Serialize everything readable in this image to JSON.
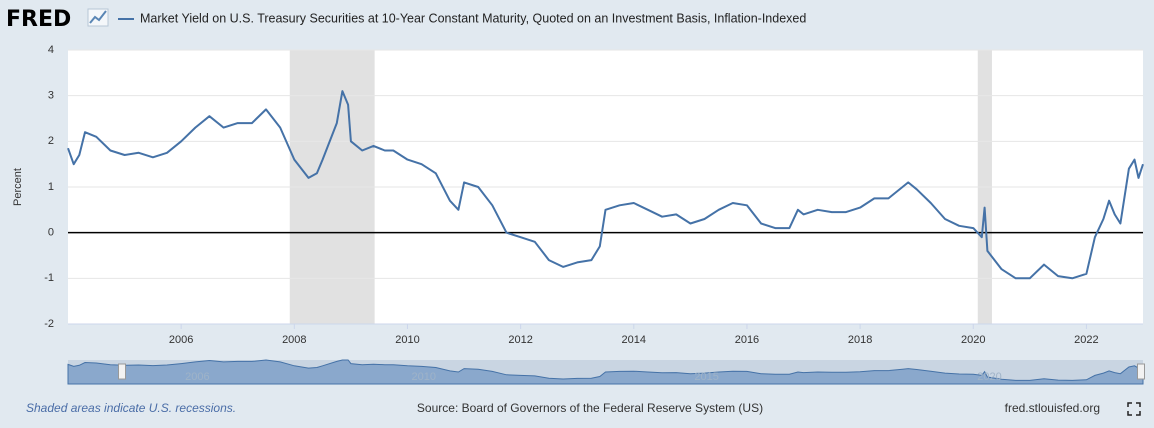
{
  "logo": "FRED",
  "chart_data": {
    "type": "line",
    "y_label": "Percent",
    "xlim": [
      2004,
      2023
    ],
    "xticks": [
      2006,
      2008,
      2010,
      2012,
      2014,
      2016,
      2018,
      2020,
      2022
    ],
    "ylim": [
      -2,
      4
    ],
    "yticks": [
      -2,
      -1,
      0,
      1,
      2,
      3,
      4
    ],
    "grid": true,
    "recessions": [
      [
        2007.92,
        2009.42
      ],
      [
        2020.08,
        2020.33
      ]
    ],
    "navigator_xticks": [
      2006,
      2010,
      2015,
      2020
    ],
    "x": [
      2004.0,
      2004.1,
      2004.2,
      2004.3,
      2004.5,
      2004.75,
      2005.0,
      2005.25,
      2005.5,
      2005.75,
      2006.0,
      2006.25,
      2006.5,
      2006.75,
      2007.0,
      2007.25,
      2007.5,
      2007.75,
      2008.0,
      2008.25,
      2008.4,
      2008.5,
      2008.75,
      2008.85,
      2008.95,
      2009.0,
      2009.2,
      2009.4,
      2009.6,
      2009.75,
      2010.0,
      2010.25,
      2010.5,
      2010.75,
      2010.9,
      2011.0,
      2011.25,
      2011.5,
      2011.75,
      2012.0,
      2012.25,
      2012.5,
      2012.75,
      2013.0,
      2013.25,
      2013.4,
      2013.5,
      2013.75,
      2014.0,
      2014.25,
      2014.5,
      2014.75,
      2015.0,
      2015.25,
      2015.5,
      2015.75,
      2016.0,
      2016.25,
      2016.5,
      2016.75,
      2016.9,
      2017.0,
      2017.25,
      2017.5,
      2017.75,
      2018.0,
      2018.25,
      2018.5,
      2018.75,
      2018.85,
      2019.0,
      2019.25,
      2019.5,
      2019.75,
      2020.0,
      2020.15,
      2020.2,
      2020.25,
      2020.5,
      2020.75,
      2021.0,
      2021.25,
      2021.5,
      2021.75,
      2022.0,
      2022.15,
      2022.3,
      2022.4,
      2022.5,
      2022.6,
      2022.75,
      2022.85,
      2022.92,
      2023.0
    ],
    "series": [
      {
        "name": "Market Yield on U.S. Treasury Securities at 10-Year Constant Maturity, Quoted on an Investment Basis, Inflation-Indexed",
        "color": "#4572a7",
        "values": [
          1.85,
          1.5,
          1.7,
          2.2,
          2.1,
          1.8,
          1.7,
          1.75,
          1.65,
          1.75,
          2.0,
          2.3,
          2.55,
          2.3,
          2.4,
          2.4,
          2.7,
          2.3,
          1.6,
          1.2,
          1.3,
          1.6,
          2.4,
          3.1,
          2.8,
          2.0,
          1.8,
          1.9,
          1.8,
          1.8,
          1.6,
          1.5,
          1.3,
          0.7,
          0.5,
          1.1,
          1.0,
          0.6,
          0.0,
          -0.1,
          -0.2,
          -0.6,
          -0.75,
          -0.65,
          -0.6,
          -0.3,
          0.5,
          0.6,
          0.65,
          0.5,
          0.35,
          0.4,
          0.2,
          0.3,
          0.5,
          0.65,
          0.6,
          0.2,
          0.1,
          0.1,
          0.5,
          0.4,
          0.5,
          0.45,
          0.45,
          0.55,
          0.75,
          0.75,
          1.0,
          1.1,
          0.95,
          0.65,
          0.3,
          0.15,
          0.1,
          -0.1,
          0.55,
          -0.4,
          -0.8,
          -1.0,
          -1.0,
          -0.7,
          -0.95,
          -1.0,
          -0.9,
          -0.1,
          0.3,
          0.7,
          0.4,
          0.2,
          1.4,
          1.6,
          1.2,
          1.5
        ]
      }
    ]
  },
  "footer": {
    "note": "Shaded areas indicate U.S. recessions.",
    "source": "Source: Board of Governors of the Federal Reserve System (US)",
    "site": "fred.stlouisfed.org"
  }
}
